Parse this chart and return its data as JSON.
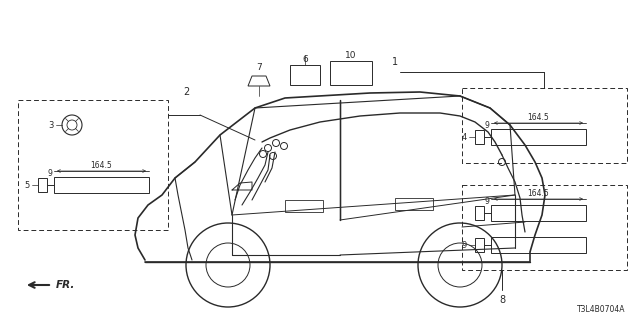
{
  "bg_color": "#ffffff",
  "line_color": "#2a2a2a",
  "diagram_code": "T3L4B0704A"
}
